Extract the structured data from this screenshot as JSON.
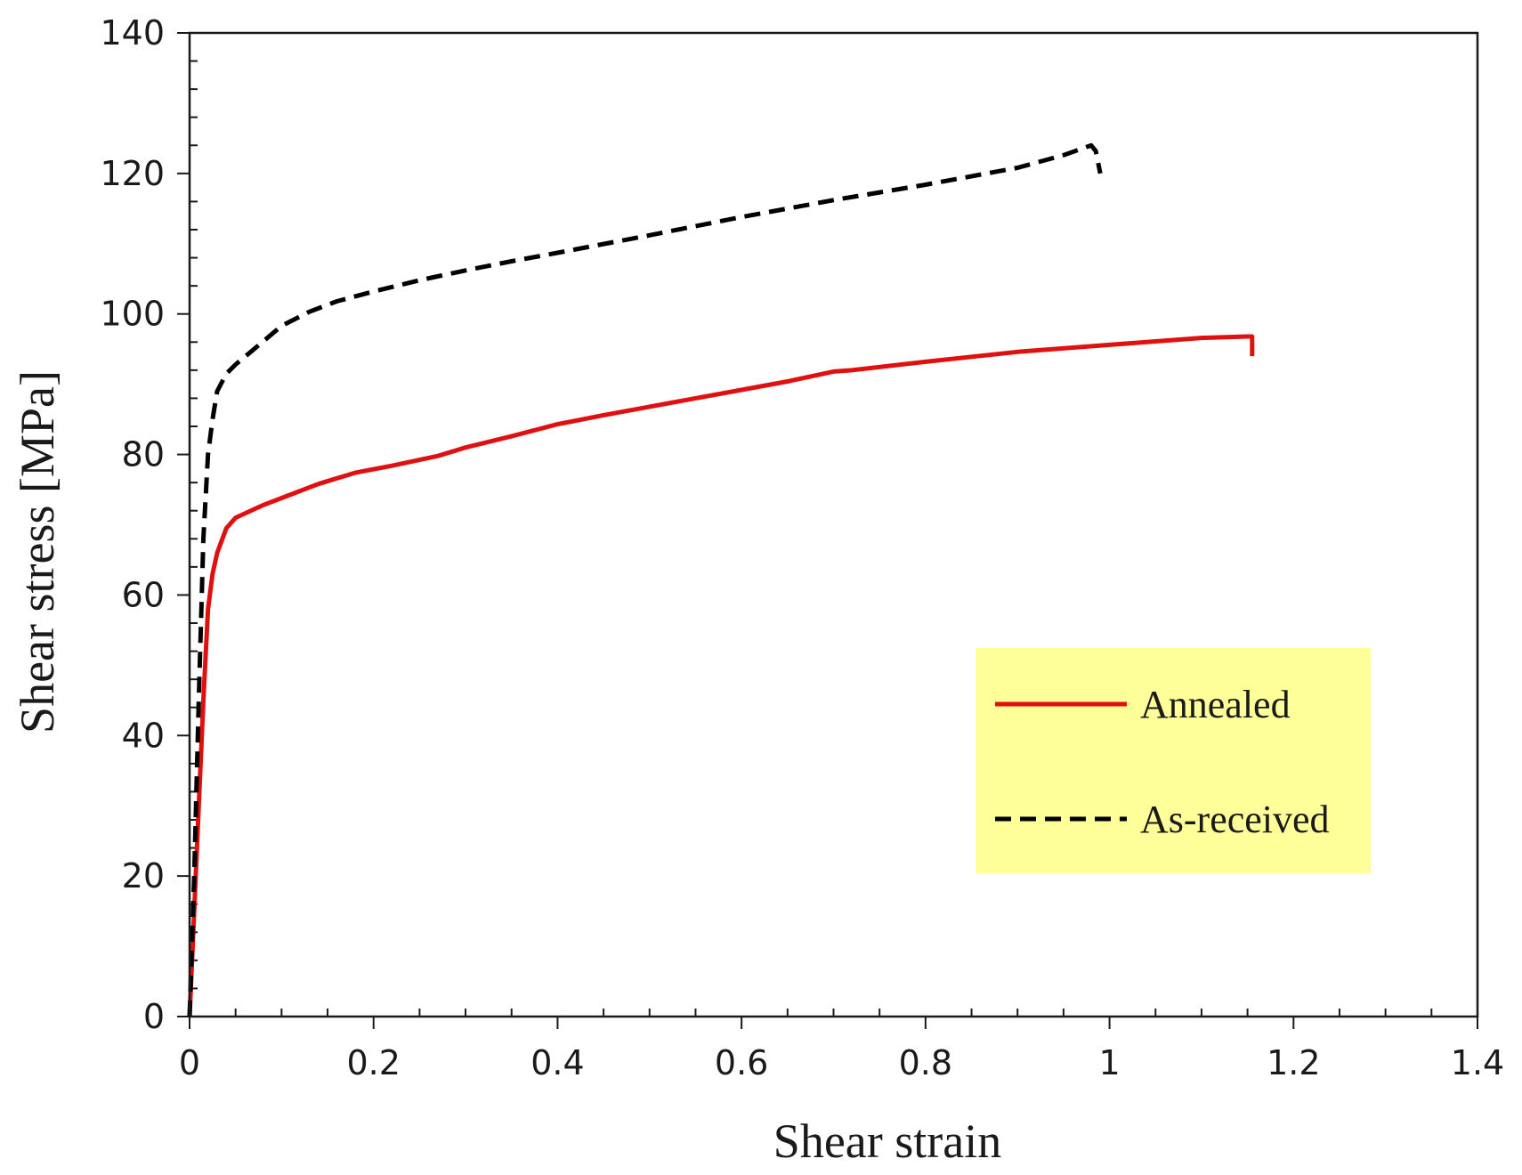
{
  "chart_data": {
    "type": "line",
    "title": "",
    "xlabel": "Shear strain",
    "ylabel": "Shear stress [MPa]",
    "xlim": [
      0,
      1.4
    ],
    "ylim": [
      0,
      140
    ],
    "x_ticks": [
      "0",
      "0.2",
      "0.4",
      "0.6",
      "0.8",
      "1",
      "1.2",
      "1.4"
    ],
    "y_ticks": [
      "0",
      "20",
      "40",
      "60",
      "80",
      "100",
      "120",
      "140"
    ],
    "grid": false,
    "legend_position": "center-right",
    "colors": {
      "legend_bg": "#ffff99",
      "annealed": "#e01010",
      "as_received": "#000000",
      "axis": "#1a1a1a"
    },
    "series": [
      {
        "name": "Annealed",
        "style": "solid",
        "x": [
          0,
          0.005,
          0.01,
          0.015,
          0.02,
          0.025,
          0.03,
          0.04,
          0.05,
          0.08,
          0.1,
          0.14,
          0.18,
          0.22,
          0.27,
          0.3,
          0.35,
          0.4,
          0.45,
          0.5,
          0.55,
          0.6,
          0.65,
          0.7,
          0.72,
          0.8,
          0.9,
          1.0,
          1.1,
          1.15,
          1.155,
          1.155
        ],
        "values": [
          0,
          15,
          30,
          45,
          58,
          63,
          66,
          69.5,
          71,
          72.8,
          73.8,
          75.8,
          77.4,
          78.4,
          79.8,
          81,
          82.6,
          84.3,
          85.6,
          86.8,
          88,
          89.2,
          90.4,
          91.8,
          92,
          93.2,
          94.6,
          95.6,
          96.6,
          96.8,
          96.8,
          94
        ]
      },
      {
        "name": "As-received",
        "style": "dashed",
        "x": [
          0,
          0.005,
          0.01,
          0.015,
          0.02,
          0.025,
          0.03,
          0.04,
          0.05,
          0.07,
          0.1,
          0.13,
          0.16,
          0.2,
          0.25,
          0.3,
          0.35,
          0.4,
          0.5,
          0.6,
          0.7,
          0.8,
          0.9,
          0.95,
          0.98,
          0.985,
          0.99
        ],
        "values": [
          0,
          20,
          45,
          68,
          80,
          85,
          89,
          91.5,
          92.8,
          95,
          98.3,
          100.3,
          101.8,
          103.2,
          104.8,
          106.2,
          107.5,
          108.7,
          111.2,
          113.8,
          116.2,
          118.4,
          120.8,
          122.6,
          124,
          123.2,
          120
        ]
      }
    ]
  }
}
